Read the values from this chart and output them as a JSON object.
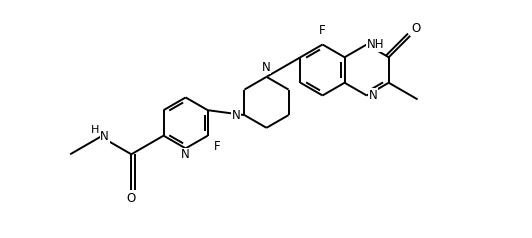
{
  "figsize": [
    5.32,
    2.38
  ],
  "dpi": 100,
  "bg": "#ffffff",
  "lw": 1.4,
  "fs": 8.5,
  "xlim": [
    -1.0,
    11.5
  ],
  "ylim": [
    -0.5,
    5.5
  ]
}
